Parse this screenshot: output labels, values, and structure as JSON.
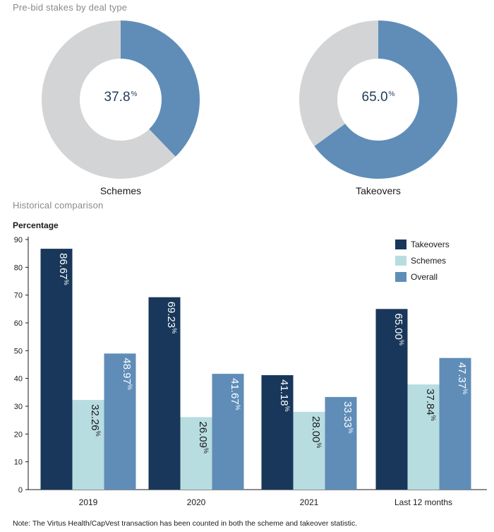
{
  "colors": {
    "takeovers": "#18375a",
    "schemes": "#b7dde1",
    "overall": "#5f8db8",
    "donut_rest": "#d3d4d6",
    "axis": "#1a1a1a"
  },
  "donut_section": {
    "title": "Pre-bid stakes by deal type",
    "donuts": [
      {
        "label": "Schemes",
        "value_text": "37.8",
        "unit": "%"
      },
      {
        "label": "Takeovers",
        "value_text": "65.0",
        "unit": "%"
      }
    ]
  },
  "historical_section": {
    "title": "Historical comparison"
  },
  "note": "Note: The Virtus Health/CapVest transaction has been counted in both the scheme and takeover statistic.",
  "chart_data": [
    {
      "type": "pie",
      "variant": "donut",
      "title": "Schemes",
      "values": [
        37.8,
        62.2
      ],
      "highlight_value": 37.8
    },
    {
      "type": "pie",
      "variant": "donut",
      "title": "Takeovers",
      "values": [
        65.0,
        35.0
      ],
      "highlight_value": 65.0
    },
    {
      "type": "bar",
      "title": "Historical comparison",
      "ylabel": "Percentage",
      "xlabel": "",
      "ylim": [
        0,
        90
      ],
      "yticks": [
        0,
        10,
        20,
        30,
        40,
        50,
        60,
        70,
        80,
        90
      ],
      "categories": [
        "2019",
        "2020",
        "2021",
        "Last 12 months"
      ],
      "series": [
        {
          "name": "Takeovers",
          "values": [
            86.67,
            69.23,
            41.18,
            65.0
          ],
          "labels": [
            "86.67",
            "69.23",
            "41.18",
            "65.00"
          ]
        },
        {
          "name": "Schemes",
          "values": [
            32.26,
            26.09,
            28.0,
            37.84
          ],
          "labels": [
            "32.26",
            "26.09",
            "28.00",
            "37.84"
          ]
        },
        {
          "name": "Overall",
          "values": [
            48.97,
            41.67,
            33.33,
            47.37
          ],
          "labels": [
            "48.97",
            "41.67",
            "33.33",
            "47.37"
          ]
        }
      ],
      "legend": "top-right",
      "grid": false
    }
  ]
}
